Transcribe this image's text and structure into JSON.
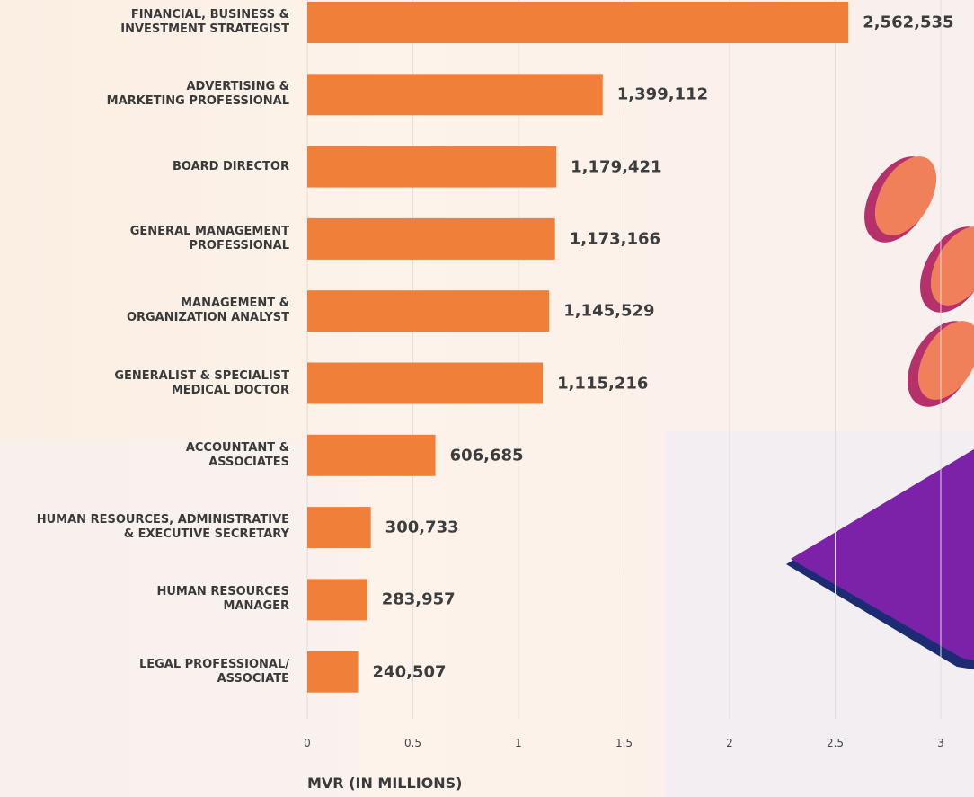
{
  "chart_data": {
    "type": "bar",
    "orientation": "horizontal",
    "x_label": "MVR (IN MILLIONS)",
    "categories": [
      "FINANCIAL, BUSINESS &\nINVESTMENT STRATEGIST",
      "ADVERTISING &\nMARKETING PROFESSIONAL",
      "BOARD DIRECTOR",
      "GENERAL MANAGEMENT\nPROFESSIONAL",
      "MANAGEMENT &\nORGANIZATION ANALYST",
      "GENERALIST & SPECIALIST\nMEDICAL DOCTOR",
      "ACCOUNTANT &\nASSOCIATES",
      "HUMAN RESOURCES, ADMINISTRATIVE\n& EXECUTIVE SECRETARY",
      "HUMAN RESOURCES\nMANAGER",
      "LEGAL PROFESSIONAL/\nASSOCIATE"
    ],
    "values": [
      2.562535,
      1.399112,
      1.179421,
      1.173166,
      1.145529,
      1.115216,
      0.606685,
      0.300733,
      0.283957,
      0.240507
    ],
    "value_labels": [
      "2,562,535",
      "1,399,112",
      "1,179,421",
      "1,173,166",
      "1,145,529",
      "1,115,216",
      "606,685",
      "300,733",
      "283,957",
      "240,507"
    ],
    "color": "#f07f3a",
    "xlim": [
      0,
      3
    ],
    "xticks": [
      0,
      0.5,
      1,
      1.5,
      2,
      2.5,
      3
    ],
    "grid": true
  }
}
